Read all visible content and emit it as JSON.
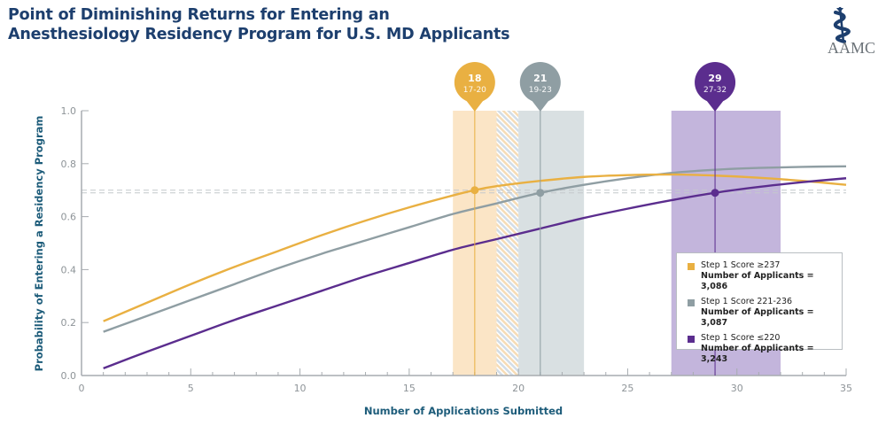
{
  "header": {
    "title_line1": "Point of Diminishing Returns for Entering an",
    "title_line2": "Anesthesiology Residency Program for U.S. MD Applicants",
    "logo_text": "AAMC",
    "logo_icon": "caduceus-icon"
  },
  "chart_data": {
    "type": "line",
    "title": "Point of Diminishing Returns for Entering an Anesthesiology Residency Program for U.S. MD Applicants",
    "xlabel": "Number of Applications Submitted",
    "ylabel": "Probability of Entering a Residency Program",
    "xlim": [
      0,
      35
    ],
    "ylim": [
      0,
      1.0
    ],
    "x_ticks": [
      0,
      5,
      10,
      15,
      20,
      25,
      30,
      35
    ],
    "x_tick_labels": [
      "0",
      "5",
      "10",
      "15",
      "20",
      "25",
      "30",
      "35"
    ],
    "y_ticks": [
      0,
      0.2,
      0.4,
      0.6,
      0.8,
      1.0
    ],
    "y_tick_labels": [
      "0.0",
      "0.2",
      "0.4",
      "0.6",
      "0.8",
      "1.0"
    ],
    "grid": false,
    "legend_position": "bottom-right",
    "series": [
      {
        "name": "Step 1 Score ≥237",
        "applicants_label": "Number of Applicants = 3,086",
        "color": "#e9b042",
        "x": [
          1,
          3,
          5,
          7,
          9,
          11,
          13,
          15,
          17,
          18,
          19,
          21,
          23,
          25,
          27,
          29,
          31,
          33,
          35
        ],
        "y": [
          0.205,
          0.275,
          0.345,
          0.41,
          0.47,
          0.53,
          0.585,
          0.635,
          0.68,
          0.7,
          0.715,
          0.735,
          0.75,
          0.757,
          0.759,
          0.755,
          0.747,
          0.735,
          0.72
        ],
        "point_of_diminishing_returns": 18,
        "range_label": "17-20",
        "range": [
          17,
          20
        ],
        "pdr_probability": 0.7
      },
      {
        "name": "Step 1 Score 221-236",
        "applicants_label": "Number of Applicants = 3,087",
        "color": "#8f9ea3",
        "x": [
          1,
          3,
          5,
          7,
          9,
          11,
          13,
          15,
          17,
          19,
          21,
          23,
          25,
          27,
          29,
          31,
          33,
          35
        ],
        "y": [
          0.165,
          0.225,
          0.285,
          0.345,
          0.405,
          0.46,
          0.51,
          0.56,
          0.61,
          0.65,
          0.69,
          0.72,
          0.745,
          0.765,
          0.777,
          0.784,
          0.788,
          0.79
        ],
        "point_of_diminishing_returns": 21,
        "range_label": "19-23",
        "range": [
          19,
          23
        ],
        "pdr_probability": 0.69
      },
      {
        "name": "Step 1 Score ≤220",
        "applicants_label": "Number of Applicants = 3,243",
        "color": "#5b2d8e",
        "x": [
          1,
          3,
          5,
          7,
          9,
          11,
          13,
          15,
          17,
          19,
          21,
          23,
          25,
          27,
          29,
          31,
          33,
          35
        ],
        "y": [
          0.027,
          0.09,
          0.15,
          0.21,
          0.265,
          0.32,
          0.375,
          0.425,
          0.475,
          0.515,
          0.555,
          0.595,
          0.63,
          0.662,
          0.69,
          0.712,
          0.73,
          0.745
        ],
        "point_of_diminishing_returns": 29,
        "range_label": "27-32",
        "range": [
          27,
          32
        ],
        "pdr_probability": 0.69
      }
    ],
    "annotations": [
      {
        "label": "18",
        "sublabel": "17-20",
        "x": 18,
        "series": 0
      },
      {
        "label": "21",
        "sublabel": "19-23",
        "x": 21,
        "series": 1
      },
      {
        "label": "29",
        "sublabel": "27-32",
        "x": 29,
        "series": 2
      }
    ],
    "reference_lines_y": [
      0.7,
      0.69
    ]
  }
}
